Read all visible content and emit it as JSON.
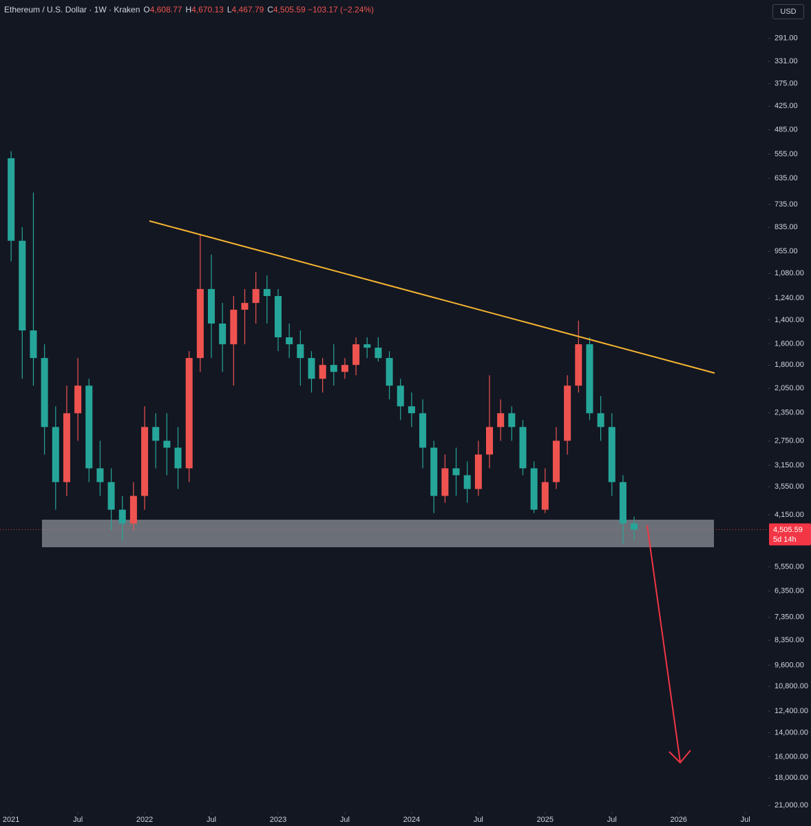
{
  "chart_data": {
    "type": "candlestick",
    "title": "Ethereum / U.S. Dollar · 1W · Kraken",
    "ohlc": [
      {
        "key": "O",
        "value": 4608.77,
        "label": "4,608.77"
      },
      {
        "key": "H",
        "value": 4670.13,
        "label": "4,670.13"
      },
      {
        "key": "L",
        "value": 4467.79,
        "label": "4,467.79"
      },
      {
        "key": "C",
        "value": 4505.59,
        "label": "4,505.59"
      }
    ],
    "change": "−103.17 (−2.24%)",
    "currency": "USD",
    "price_line": {
      "value": 4505.59,
      "label": "4,505.59"
    },
    "countdown": "5d 14h",
    "log_scale": true,
    "inverted": true,
    "up_color": "#26a69a",
    "down_color": "#ef5350",
    "xlim": [
      "2020-12",
      "2026-09"
    ],
    "xticks": [
      {
        "value": "2021-01",
        "label": "2021"
      },
      {
        "value": "2021-07",
        "label": "Jul"
      },
      {
        "value": "2022-01",
        "label": "2022"
      },
      {
        "value": "2022-07",
        "label": "Jul"
      },
      {
        "value": "2023-01",
        "label": "2023"
      },
      {
        "value": "2023-07",
        "label": "Jul"
      },
      {
        "value": "2024-01",
        "label": "2024"
      },
      {
        "value": "2024-07",
        "label": "Jul"
      },
      {
        "value": "2025-01",
        "label": "2025"
      },
      {
        "value": "2025-07",
        "label": "Jul"
      },
      {
        "value": "2026-01",
        "label": "2026"
      },
      {
        "value": "2026-07",
        "label": "Jul"
      }
    ],
    "ylim": [
      235,
      21800
    ],
    "yticks": [
      {
        "value": 291,
        "label": "291.00"
      },
      {
        "value": 331,
        "label": "331.00"
      },
      {
        "value": 375,
        "label": "375.00"
      },
      {
        "value": 425,
        "label": "425.00"
      },
      {
        "value": 485,
        "label": "485.00"
      },
      {
        "value": 555,
        "label": "555.00"
      },
      {
        "value": 635,
        "label": "635.00"
      },
      {
        "value": 735,
        "label": "735.00"
      },
      {
        "value": 835,
        "label": "835.00"
      },
      {
        "value": 955,
        "label": "955.00"
      },
      {
        "value": 1080,
        "label": "1,080.00"
      },
      {
        "value": 1240,
        "label": "1,240.00"
      },
      {
        "value": 1400,
        "label": "1,400.00"
      },
      {
        "value": 1600,
        "label": "1,600.00"
      },
      {
        "value": 1800,
        "label": "1,800.00"
      },
      {
        "value": 2050,
        "label": "2,050.00"
      },
      {
        "value": 2350,
        "label": "2,350.00"
      },
      {
        "value": 2750,
        "label": "2,750.00"
      },
      {
        "value": 3150,
        "label": "3,150.00"
      },
      {
        "value": 3550,
        "label": "3,550.00"
      },
      {
        "value": 4150,
        "label": "4,150.00"
      },
      {
        "value": 5550,
        "label": "5,550.00"
      },
      {
        "value": 6350,
        "label": "6,350.00"
      },
      {
        "value": 7350,
        "label": "7,350.00"
      },
      {
        "value": 8350,
        "label": "8,350.00"
      },
      {
        "value": 9600,
        "label": "9,600.00"
      },
      {
        "value": 10800,
        "label": "10,800.00"
      },
      {
        "value": 12400,
        "label": "12,400.00"
      },
      {
        "value": 14000,
        "label": "14,000.00"
      },
      {
        "value": 16000,
        "label": "16,000.00"
      },
      {
        "value": 18000,
        "label": "18,000.00"
      },
      {
        "value": 21000,
        "label": "21,000.00"
      }
    ],
    "candles": [
      {
        "x": "2021-01",
        "open": 568,
        "high": 1010,
        "low": 546,
        "close": 900
      },
      {
        "x": "2021-02",
        "open": 900,
        "high": 1943,
        "low": 834,
        "close": 1484
      },
      {
        "x": "2021-03",
        "open": 1484,
        "high": 2019,
        "low": 688,
        "close": 1731
      },
      {
        "x": "2021-04",
        "open": 1731,
        "high": 2965,
        "low": 1603,
        "close": 2543
      },
      {
        "x": "2021-05",
        "open": 2543,
        "high": 4033,
        "low": 2266,
        "close": 3458
      },
      {
        "x": "2021-06",
        "open": 3458,
        "high": 3735,
        "low": 2019,
        "close": 2355
      },
      {
        "x": "2021-07",
        "open": 2355,
        "high": 2746,
        "low": 1731,
        "close": 2019
      },
      {
        "x": "2021-08",
        "open": 2019,
        "high": 3458,
        "low": 1943,
        "close": 3202
      },
      {
        "x": "2021-09",
        "open": 3202,
        "high": 3735,
        "low": 2746,
        "close": 3458
      },
      {
        "x": "2021-10",
        "open": 3458,
        "high": 4526,
        "low": 3202,
        "close": 4033
      },
      {
        "x": "2021-11",
        "open": 4033,
        "high": 4793,
        "low": 3735,
        "close": 4355
      },
      {
        "x": "2021-12",
        "open": 4355,
        "high": 4526,
        "low": 3458,
        "close": 3735
      },
      {
        "x": "2022-01",
        "open": 3735,
        "high": 4033,
        "low": 2266,
        "close": 2543
      },
      {
        "x": "2022-02",
        "open": 2543,
        "high": 3202,
        "low": 2355,
        "close": 2746
      },
      {
        "x": "2022-03",
        "open": 2746,
        "high": 3328,
        "low": 2355,
        "close": 2854
      },
      {
        "x": "2022-04",
        "open": 2854,
        "high": 3594,
        "low": 2543,
        "close": 3202
      },
      {
        "x": "2022-05",
        "open": 3202,
        "high": 3458,
        "low": 1666,
        "close": 1731
      },
      {
        "x": "2022-06",
        "open": 1731,
        "high": 1870,
        "low": 866,
        "close": 1178
      },
      {
        "x": "2022-07",
        "open": 1178,
        "high": 1731,
        "low": 972,
        "close": 1428
      },
      {
        "x": "2022-08",
        "open": 1428,
        "high": 1870,
        "low": 1273,
        "close": 1603
      },
      {
        "x": "2022-09",
        "open": 1603,
        "high": 2019,
        "low": 1225,
        "close": 1322
      },
      {
        "x": "2022-10",
        "open": 1322,
        "high": 1603,
        "low": 1178,
        "close": 1273
      },
      {
        "x": "2022-11",
        "open": 1273,
        "high": 1428,
        "low": 1070,
        "close": 1178
      },
      {
        "x": "2022-12",
        "open": 1178,
        "high": 1428,
        "low": 1091,
        "close": 1225
      },
      {
        "x": "2023-01",
        "open": 1225,
        "high": 1666,
        "low": 1178,
        "close": 1542
      },
      {
        "x": "2023-02",
        "open": 1542,
        "high": 1731,
        "low": 1428,
        "close": 1603
      },
      {
        "x": "2023-03",
        "open": 1603,
        "high": 2019,
        "low": 1484,
        "close": 1731
      },
      {
        "x": "2023-04",
        "open": 1731,
        "high": 2098,
        "low": 1666,
        "close": 1943
      },
      {
        "x": "2023-05",
        "open": 1943,
        "high": 2098,
        "low": 1731,
        "close": 1799
      },
      {
        "x": "2023-06",
        "open": 1799,
        "high": 2019,
        "low": 1603,
        "close": 1870
      },
      {
        "x": "2023-07",
        "open": 1870,
        "high": 1943,
        "low": 1731,
        "close": 1799
      },
      {
        "x": "2023-08",
        "open": 1799,
        "high": 1906,
        "low": 1542,
        "close": 1603
      },
      {
        "x": "2023-09",
        "open": 1603,
        "high": 1731,
        "low": 1542,
        "close": 1634
      },
      {
        "x": "2023-10",
        "open": 1634,
        "high": 1765,
        "low": 1542,
        "close": 1731
      },
      {
        "x": "2023-11",
        "open": 1731,
        "high": 2180,
        "low": 1666,
        "close": 2019
      },
      {
        "x": "2023-12",
        "open": 2019,
        "high": 2447,
        "low": 1943,
        "close": 2266
      },
      {
        "x": "2024-01",
        "open": 2266,
        "high": 2543,
        "low": 2098,
        "close": 2355
      },
      {
        "x": "2024-02",
        "open": 2355,
        "high": 3202,
        "low": 2180,
        "close": 2854
      },
      {
        "x": "2024-03",
        "open": 2854,
        "high": 4111,
        "low": 2746,
        "close": 3735
      },
      {
        "x": "2024-04",
        "open": 3735,
        "high": 3881,
        "low": 2965,
        "close": 3202
      },
      {
        "x": "2024-05",
        "open": 3202,
        "high": 3735,
        "low": 2854,
        "close": 3328
      },
      {
        "x": "2024-06",
        "open": 3328,
        "high": 3881,
        "low": 3082,
        "close": 3594
      },
      {
        "x": "2024-07",
        "open": 3594,
        "high": 3735,
        "low": 2746,
        "close": 2965
      },
      {
        "x": "2024-08",
        "open": 2965,
        "high": 3202,
        "low": 1906,
        "close": 2543
      },
      {
        "x": "2024-09",
        "open": 2543,
        "high": 2746,
        "low": 2180,
        "close": 2355
      },
      {
        "x": "2024-10",
        "open": 2355,
        "high": 2746,
        "low": 2266,
        "close": 2543
      },
      {
        "x": "2024-11",
        "open": 2543,
        "high": 3328,
        "low": 2447,
        "close": 3202
      },
      {
        "x": "2024-12",
        "open": 3202,
        "high": 4111,
        "low": 3082,
        "close": 4033
      },
      {
        "x": "2025-01",
        "open": 4033,
        "high": 4111,
        "low": 3202,
        "close": 3458
      },
      {
        "x": "2025-02",
        "open": 3458,
        "high": 3594,
        "low": 2543,
        "close": 2746
      },
      {
        "x": "2025-03",
        "open": 2746,
        "high": 2965,
        "low": 1906,
        "close": 2019
      },
      {
        "x": "2025-04",
        "open": 2019,
        "high": 2098,
        "low": 1405,
        "close": 1603
      },
      {
        "x": "2025-05",
        "open": 1603,
        "high": 2447,
        "low": 1542,
        "close": 2355
      },
      {
        "x": "2025-06",
        "open": 2355,
        "high": 2746,
        "low": 2139,
        "close": 2543
      },
      {
        "x": "2025-07",
        "open": 2543,
        "high": 3735,
        "low": 2355,
        "close": 3458
      },
      {
        "x": "2025-08",
        "open": 3458,
        "high": 4880,
        "low": 3328,
        "close": 4355
      },
      {
        "x": "2025-09",
        "open": 4355,
        "high": 4793,
        "low": 4191,
        "close": 4505.59
      }
    ]
  }
}
